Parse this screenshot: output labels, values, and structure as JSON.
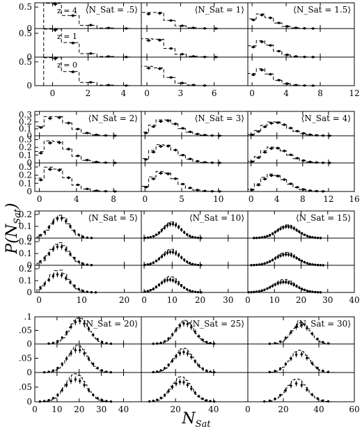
{
  "chart_data": {
    "type": "grid-of-histograms",
    "ylabel": "P(N_Sat)",
    "xlabel": "N_Sat",
    "redshift_labels": [
      "z = 4",
      "z = 1",
      "z = 0"
    ],
    "panel_series_description": "dashed = histogram, solid points with error bars",
    "groups": [
      {
        "xlim": [
          [
            -1,
            5
          ],
          [
            -0.5,
            9
          ],
          [
            -0.5,
            12
          ]
        ],
        "xticks": [
          [
            0,
            2,
            4
          ],
          [
            0,
            3,
            6
          ],
          [
            0,
            4,
            8,
            12
          ]
        ],
        "xtick_labels": [
          [
            "0",
            "2",
            "4"
          ],
          [
            "0",
            "3",
            "6"
          ],
          [
            "0",
            "4",
            "8",
            "12"
          ]
        ],
        "ylim": [
          0,
          0.6
        ],
        "yticks": [
          0,
          0.5
        ],
        "ytick_labels": [
          "0",
          "0.5"
        ],
        "means": [
          "⟨N_Sat = .5⟩",
          "⟨N_Sat = 1⟩",
          "⟨N_Sat = 1.5⟩"
        ],
        "mean_values": [
          0.5,
          1,
          1.5
        ]
      },
      {
        "xlim": [
          [
            -0.5,
            11
          ],
          [
            -0.5,
            14
          ],
          [
            -0.5,
            16
          ]
        ],
        "xticks": [
          [
            0,
            4,
            8
          ],
          [
            0,
            5,
            10
          ],
          [
            0,
            4,
            8,
            12,
            16
          ]
        ],
        "xtick_labels": [
          [
            "0",
            "4",
            "8"
          ],
          [
            "0",
            "5",
            "10"
          ],
          [
            "0",
            "4",
            "8",
            "12",
            "16"
          ]
        ],
        "ylim": [
          0,
          0.35
        ],
        "yticks": [
          0,
          0.1,
          0.2,
          0.3
        ],
        "ytick_labels": [
          "0",
          "0.1",
          "0.2",
          "0.3"
        ],
        "means": [
          "⟨N_Sat = 2⟩",
          "⟨N_Sat = 3⟩",
          "⟨N_Sat = 4⟩"
        ],
        "mean_values": [
          2,
          3,
          4
        ]
      },
      {
        "xlim": [
          [
            -1,
            24
          ],
          [
            -1,
            37
          ],
          [
            0,
            40
          ]
        ],
        "xticks": [
          [
            0,
            10,
            20
          ],
          [
            0,
            10,
            20,
            30
          ],
          [
            0,
            10,
            20,
            30,
            40
          ]
        ],
        "xtick_labels": [
          [
            "0",
            "10",
            "20"
          ],
          [
            "0",
            "10",
            "20",
            "30"
          ],
          [
            "0",
            "10",
            "20",
            "30",
            "40"
          ]
        ],
        "ylim": [
          0,
          0.23
        ],
        "yticks": [
          0,
          0.1,
          0.2
        ],
        "ytick_labels": [
          "0",
          "0.1",
          "0.2"
        ],
        "means": [
          "⟨N_Sat = 5⟩",
          "⟨N_Sat = 10⟩",
          "⟨N_Sat = 15⟩"
        ],
        "mean_values": [
          5,
          10,
          15
        ]
      },
      {
        "xlim": [
          [
            0,
            48
          ],
          [
            2,
            58
          ],
          [
            0,
            60
          ]
        ],
        "xticks": [
          [
            0,
            10,
            20,
            30,
            40
          ],
          [
            20,
            40
          ],
          [
            0,
            20,
            40,
            60
          ]
        ],
        "xtick_labels": [
          [
            "0",
            "10",
            "20",
            "30",
            "40"
          ],
          [
            "20",
            "40"
          ],
          [
            "0",
            "20",
            "40",
            "60"
          ]
        ],
        "ylim": [
          0,
          0.1
        ],
        "yticks": [
          0,
          0.05,
          0.1
        ],
        "ytick_labels": [
          "0",
          ".05",
          ".1"
        ],
        "means": [
          "⟨N_Sat = 20⟩",
          "⟨N_Sat = 25⟩",
          "⟨N_Sat = 30⟩"
        ],
        "mean_values": [
          20,
          25,
          30
        ]
      }
    ]
  }
}
